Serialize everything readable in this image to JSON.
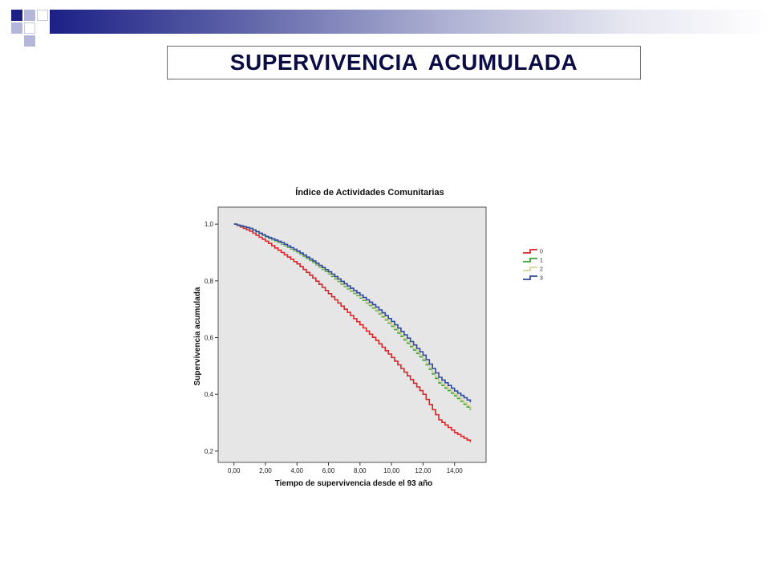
{
  "slide": {
    "title": "SUPERVIVENCIA ACUMULADA"
  },
  "colors": {
    "header_dark": "#1c2085",
    "title_text": "#0b0b45",
    "plot_bg": "#e6e6e6"
  },
  "chart_data": {
    "type": "line",
    "title": "Índice de Actividades Comunitarias",
    "xlabel": "Tiempo de supervivencia desde el 93 año",
    "ylabel": "Supervivencia acumulada",
    "xlim": [
      -1.0,
      16.0
    ],
    "ylim": [
      0.16,
      1.06
    ],
    "x_ticks": [
      0,
      2,
      4,
      6,
      8,
      10,
      12,
      14
    ],
    "x_tick_labels": [
      "0,00",
      "2,00",
      "4,00",
      "6,00",
      "8,00",
      "10,00",
      "12,00",
      "14,00"
    ],
    "y_ticks": [
      0.2,
      0.4,
      0.6,
      0.8,
      1.0
    ],
    "y_tick_labels": [
      "0,2",
      "0,4",
      "0,6",
      "0,8",
      "1,0"
    ],
    "grid": false,
    "legend_position": "right",
    "step": true,
    "series": [
      {
        "name": "0",
        "color": "#d9262a",
        "x": [
          0,
          1,
          2,
          3,
          4,
          5,
          6,
          7,
          8,
          9,
          10,
          11,
          12,
          13,
          14,
          15
        ],
        "values": [
          1.0,
          0.975,
          0.94,
          0.9,
          0.86,
          0.81,
          0.755,
          0.7,
          0.645,
          0.59,
          0.53,
          0.465,
          0.4,
          0.31,
          0.265,
          0.232
        ]
      },
      {
        "name": "1",
        "color": "#3aa63a",
        "x": [
          0,
          1,
          2,
          3,
          4,
          5,
          6,
          7,
          8,
          9,
          10,
          11,
          12,
          13,
          14,
          15
        ],
        "values": [
          1.0,
          0.985,
          0.955,
          0.93,
          0.9,
          0.865,
          0.825,
          0.78,
          0.74,
          0.695,
          0.64,
          0.58,
          0.52,
          0.44,
          0.395,
          0.345
        ]
      },
      {
        "name": "2",
        "color": "#d8d59a",
        "x": [
          0,
          1,
          2,
          3,
          4,
          5,
          6,
          7,
          8,
          9,
          10,
          11,
          12,
          13,
          14,
          15
        ],
        "values": [
          1.0,
          0.985,
          0.957,
          0.932,
          0.902,
          0.868,
          0.828,
          0.783,
          0.743,
          0.698,
          0.644,
          0.585,
          0.525,
          0.445,
          0.4,
          0.35
        ]
      },
      {
        "name": "3",
        "color": "#2e4aa0",
        "x": [
          0,
          1,
          2,
          3,
          4,
          5,
          6,
          7,
          8,
          9,
          10,
          11,
          12,
          13,
          14,
          15
        ],
        "values": [
          1.0,
          0.985,
          0.957,
          0.935,
          0.905,
          0.87,
          0.832,
          0.79,
          0.75,
          0.708,
          0.657,
          0.598,
          0.538,
          0.46,
          0.412,
          0.372
        ]
      }
    ]
  }
}
